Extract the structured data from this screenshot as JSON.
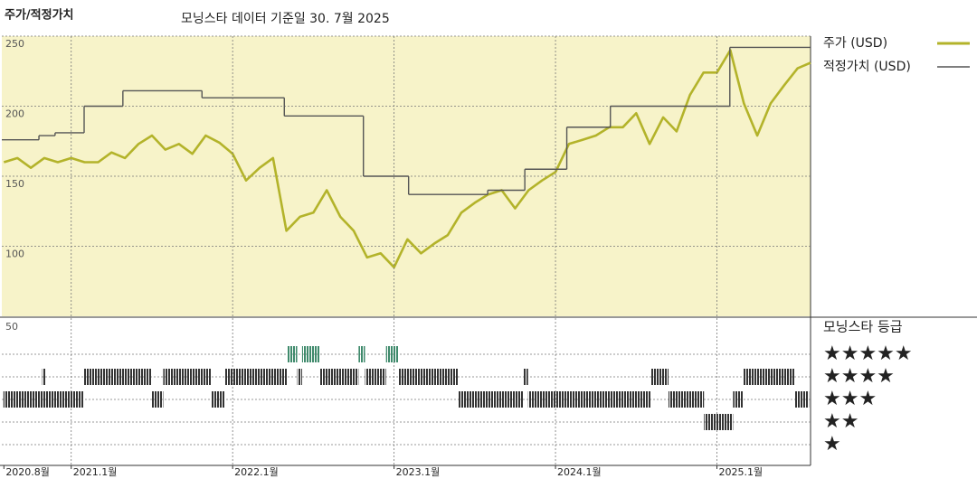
{
  "chart_data": [
    {
      "type": "line",
      "title": "주가/적정가치",
      "subtitle": "모닝스타 데이터 기준일 30. 7월 2025",
      "xlim": [
        2020.57,
        2025.58
      ],
      "ylim": [
        50,
        250
      ],
      "yticks": [
        100,
        150,
        200,
        250
      ],
      "grid": true,
      "background": "#f7f3c9",
      "legend": "right",
      "series": [
        {
          "name": "주가 (USD)",
          "color": "#b3b32a",
          "x": [
            2020.583,
            2020.667,
            2020.75,
            2020.833,
            2020.917,
            2021,
            2021.083,
            2021.167,
            2021.25,
            2021.333,
            2021.417,
            2021.5,
            2021.583,
            2021.667,
            2021.75,
            2021.833,
            2021.917,
            2022,
            2022.083,
            2022.167,
            2022.25,
            2022.333,
            2022.417,
            2022.5,
            2022.583,
            2022.667,
            2022.75,
            2022.833,
            2022.917,
            2023,
            2023.083,
            2023.167,
            2023.25,
            2023.333,
            2023.417,
            2023.5,
            2023.583,
            2023.667,
            2023.75,
            2023.833,
            2023.917,
            2024,
            2024.083,
            2024.167,
            2024.25,
            2024.333,
            2024.417,
            2024.5,
            2024.583,
            2024.667,
            2024.75,
            2024.833,
            2024.917,
            2025,
            2025.083,
            2025.167,
            2025.25,
            2025.333,
            2025.417,
            2025.5,
            2025.58
          ],
          "values": [
            160,
            163,
            156,
            163,
            160,
            163,
            160,
            160,
            167,
            163,
            173,
            179,
            169,
            173,
            166,
            179,
            174,
            166,
            147,
            156,
            163,
            111,
            121,
            124,
            140,
            121,
            111,
            92,
            95,
            85,
            105,
            95,
            102,
            108,
            124,
            131,
            137,
            140,
            127,
            140,
            147,
            153,
            173,
            176,
            179,
            185,
            185,
            195,
            173,
            192,
            182,
            208,
            224,
            224,
            240,
            202,
            179,
            202,
            215,
            227,
            231
          ]
        },
        {
          "name": "적정가치 (USD)",
          "color": "#555555",
          "step": "post",
          "x": [
            2020.57,
            2020.8,
            2020.9,
            2021.08,
            2021.32,
            2021.81,
            2022.32,
            2022.81,
            2023.09,
            2023.58,
            2023.81,
            2024.07,
            2024.34,
            2025.08
          ],
          "values": [
            176,
            179,
            181,
            200,
            211,
            206,
            193,
            150,
            137,
            140,
            155,
            185,
            200,
            242
          ]
        }
      ]
    },
    {
      "type": "rating",
      "title": "모닝스타 등급",
      "corner_label": "50",
      "xlim": [
        2020.57,
        2025.58
      ],
      "xticks": [
        {
          "value": 2020.583,
          "label": "2020.8월"
        },
        {
          "value": 2021,
          "label": "2021.1월"
        },
        {
          "value": 2022,
          "label": "2022.1월"
        },
        {
          "value": 2023,
          "label": "2023.1월"
        },
        {
          "value": 2024,
          "label": "2024.1월"
        },
        {
          "value": 2025,
          "label": "2025.1월"
        }
      ],
      "levels": [
        "★",
        "★★",
        "★★★",
        "★★★★",
        "★★★★★"
      ],
      "level_colors": [
        "#333333",
        "#333333",
        "#333333",
        "#333333",
        "#3f8a6c"
      ],
      "start": [
        2020.58,
        2020.82,
        2021.08,
        2021.5,
        2021.57,
        2021.87,
        2021.95,
        2022.34,
        2022.4,
        2022.43,
        2022.54,
        2022.78,
        2022.82,
        2022.95,
        2023.03,
        2023.4,
        2023.8,
        2023.83,
        2024.59,
        2024.7,
        2024.92,
        2025.1,
        2025.16,
        2025.48
      ],
      "end": [
        2021.08,
        2020.84,
        2021.5,
        2021.57,
        2021.87,
        2021.95,
        2022.34,
        2022.4,
        2022.43,
        2022.54,
        2022.78,
        2022.82,
        2022.95,
        2023.03,
        2023.4,
        2023.8,
        2023.83,
        2024.59,
        2024.7,
        2024.92,
        2025.1,
        2025.16,
        2025.48,
        2025.57
      ],
      "rating": [
        3,
        4,
        4,
        3,
        4,
        3,
        4,
        5,
        4,
        5,
        4,
        5,
        4,
        5,
        4,
        3,
        4,
        3,
        4,
        3,
        2,
        3,
        4,
        3
      ]
    }
  ]
}
